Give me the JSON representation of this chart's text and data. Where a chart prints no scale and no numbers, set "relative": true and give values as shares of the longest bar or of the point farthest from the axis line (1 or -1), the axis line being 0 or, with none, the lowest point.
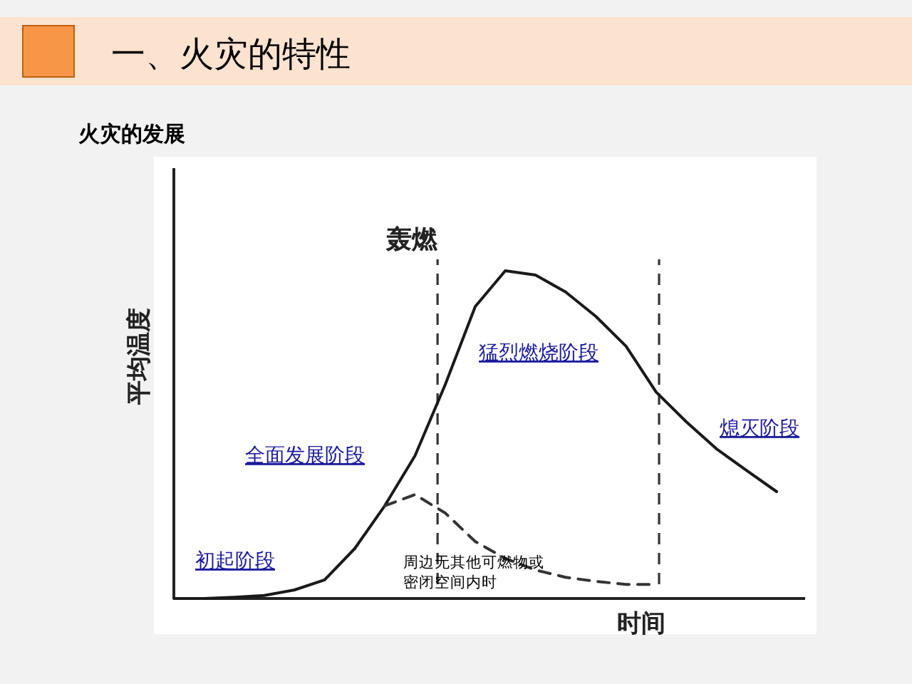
{
  "chart_data": {
    "type": "line",
    "title": "一、火灾的特性",
    "subtitle": "火灾的发展",
    "ylabel": "平均温度",
    "xlabel": "时间",
    "relative": true,
    "categories": [
      null,
      null,
      null,
      null,
      null,
      null,
      null,
      null,
      null,
      null,
      null,
      null,
      null,
      null,
      null,
      null,
      null,
      null,
      null,
      null,
      null
    ],
    "series": [
      {
        "color": "#1a1a1a",
        "line_style": "solid",
        "values": [
          0,
          0,
          0.004,
          0.009,
          0.026,
          0.057,
          0.152,
          0.283,
          0.435,
          0.652,
          0.891,
          1,
          0.987,
          0.935,
          0.861,
          0.77,
          0.63,
          0.539,
          0.457,
          0.391,
          0.326
        ]
      },
      {
        "color": "#333333",
        "line_style": "dashed",
        "values": [
          null,
          null,
          null,
          null,
          null,
          null,
          null,
          0.283,
          0.317,
          0.261,
          0.174,
          0.122,
          0.087,
          0.065,
          0.052,
          0.043,
          0.043,
          null,
          null,
          null,
          null
        ]
      }
    ],
    "annotations": [
      "轰燃",
      "初起阶段",
      "全面发展阶段",
      "猛烈燃烧阶段",
      "熄灭阶段",
      "周边无其他可燃物或密闭空间内时"
    ]
  }
}
